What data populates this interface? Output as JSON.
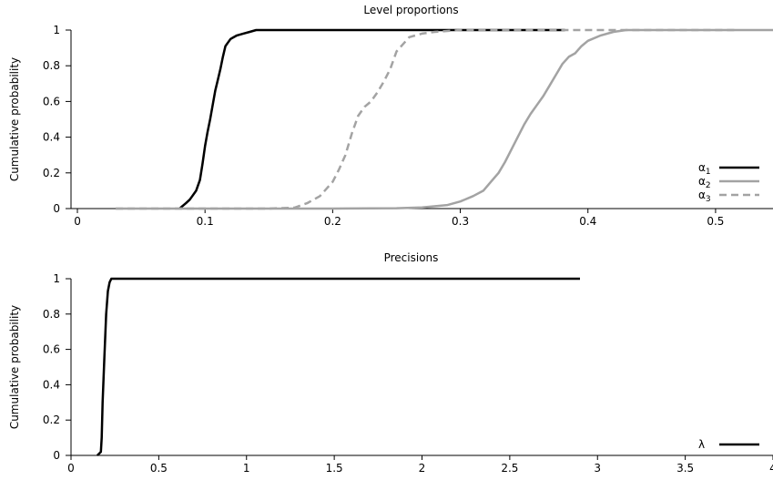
{
  "colors": {
    "axis": "#000000",
    "black": "#000000",
    "gray": "#a3a3a3"
  },
  "chart_data": [
    {
      "type": "line",
      "title": "Level proportions",
      "ylabel": "Cumulative probability",
      "xlabel": "",
      "xlim": [
        -0.005,
        0.545
      ],
      "ylim": [
        0,
        1
      ],
      "x_ticks": [
        "0",
        "0.1",
        "0.2",
        "0.3",
        "0.4",
        "0.5"
      ],
      "y_ticks": [
        "0",
        "0.2",
        "0.4",
        "0.6",
        "0.8",
        "1"
      ],
      "legend_position": "bottom-right",
      "series": [
        {
          "name": "α1",
          "base": "α",
          "sub": "1",
          "color": "#000000",
          "dash": "solid",
          "x": [
            0.08,
            0.085,
            0.088,
            0.09,
            0.093,
            0.096,
            0.098,
            0.1,
            0.102,
            0.104,
            0.106,
            0.108,
            0.11,
            0.112,
            0.114,
            0.116,
            0.118,
            0.12,
            0.125,
            0.13,
            0.135,
            0.14,
            0.15,
            0.165,
            0.2,
            0.3,
            0.382
          ],
          "y": [
            0,
            0.03,
            0.05,
            0.07,
            0.1,
            0.16,
            0.25,
            0.35,
            0.43,
            0.5,
            0.58,
            0.66,
            0.72,
            0.78,
            0.85,
            0.91,
            0.93,
            0.95,
            0.97,
            0.98,
            0.99,
            1.0,
            1.0,
            1.0,
            1.0,
            1.0,
            1.0
          ]
        },
        {
          "name": "α2",
          "base": "α",
          "sub": "2",
          "color": "#a3a3a3",
          "dash": "solid",
          "x": [
            0.03,
            0.1,
            0.2,
            0.25,
            0.27,
            0.29,
            0.3,
            0.31,
            0.318,
            0.324,
            0.33,
            0.335,
            0.34,
            0.345,
            0.35,
            0.355,
            0.36,
            0.365,
            0.37,
            0.375,
            0.38,
            0.385,
            0.39,
            0.395,
            0.4,
            0.41,
            0.42,
            0.43,
            0.45,
            0.5,
            0.545
          ],
          "y": [
            0,
            0,
            0,
            0.002,
            0.006,
            0.02,
            0.04,
            0.07,
            0.1,
            0.15,
            0.2,
            0.26,
            0.33,
            0.4,
            0.47,
            0.53,
            0.58,
            0.63,
            0.69,
            0.75,
            0.81,
            0.85,
            0.87,
            0.91,
            0.94,
            0.97,
            0.99,
            1.0,
            1.0,
            1.0,
            1.0
          ]
        },
        {
          "name": "α3",
          "base": "α",
          "sub": "3",
          "color": "#a3a3a3",
          "dash": "dashed",
          "x": [
            0.03,
            0.1,
            0.15,
            0.17,
            0.18,
            0.19,
            0.2,
            0.205,
            0.21,
            0.215,
            0.22,
            0.225,
            0.23,
            0.235,
            0.24,
            0.245,
            0.25,
            0.255,
            0.26,
            0.27,
            0.28,
            0.3,
            0.35,
            0.4,
            0.45,
            0.517
          ],
          "y": [
            0,
            0,
            0,
            0.005,
            0.03,
            0.07,
            0.15,
            0.22,
            0.3,
            0.42,
            0.52,
            0.57,
            0.6,
            0.65,
            0.71,
            0.78,
            0.88,
            0.92,
            0.96,
            0.98,
            0.99,
            1.0,
            1.0,
            1.0,
            1.0,
            1.0
          ]
        }
      ]
    },
    {
      "type": "line",
      "title": "Precisions",
      "ylabel": "Cumulative probability",
      "xlabel": "",
      "xlim": [
        0,
        4
      ],
      "ylim": [
        0,
        1
      ],
      "x_ticks": [
        "0",
        "0.5",
        "1",
        "1.5",
        "2",
        "2.5",
        "3",
        "3.5",
        "4"
      ],
      "y_ticks": [
        "0",
        "0.2",
        "0.4",
        "0.6",
        "0.8",
        "1"
      ],
      "legend_position": "bottom-right",
      "series": [
        {
          "name": "λ",
          "base": "λ",
          "sub": "",
          "color": "#000000",
          "dash": "solid",
          "x": [
            0.15,
            0.17,
            0.175,
            0.18,
            0.19,
            0.2,
            0.21,
            0.22,
            0.23,
            0.25,
            0.3,
            1.0,
            2.0,
            2.9
          ],
          "y": [
            0,
            0.02,
            0.1,
            0.3,
            0.55,
            0.8,
            0.93,
            0.98,
            1.0,
            1.0,
            1.0,
            1.0,
            1.0,
            1.0
          ]
        }
      ]
    }
  ]
}
